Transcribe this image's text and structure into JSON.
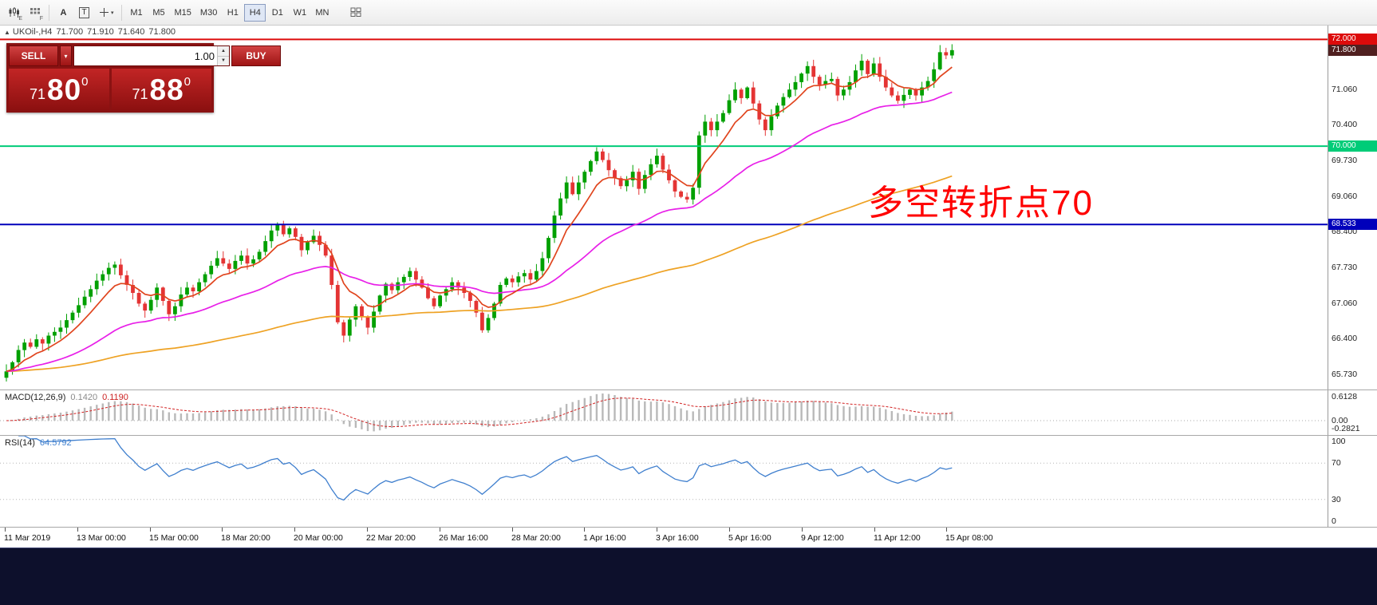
{
  "toolbar": {
    "icon_subs": [
      "E",
      "F"
    ],
    "letter_a": "A",
    "letter_t": "T",
    "timeframes": [
      "M1",
      "M5",
      "M15",
      "M30",
      "H1",
      "H4",
      "D1",
      "W1",
      "MN"
    ],
    "active_timeframe": "H4"
  },
  "quote": {
    "arrow": "▲",
    "symbol": "UKOil-,H4",
    "open": "71.700",
    "high": "71.910",
    "low": "71.640",
    "close": "71.800"
  },
  "trade_panel": {
    "sell_label": "SELL",
    "buy_label": "BUY",
    "volume": "1.00",
    "spin_up": "▲",
    "spin_down": "▼",
    "dropdown": "▾",
    "sell_price": {
      "prefix": "71",
      "big": "80",
      "sup": "0"
    },
    "buy_price": {
      "prefix": "71",
      "big": "88",
      "sup": "0"
    }
  },
  "annotation": {
    "text": "多空转折点70",
    "color": "#ff0000"
  },
  "levels": [
    {
      "price": 72.0,
      "label": "72.000",
      "color": "#dd0b0b",
      "line": true
    },
    {
      "price": 71.8,
      "label": "71.800",
      "color": "#502020",
      "line": false
    },
    {
      "price": 70.0,
      "label": "70.000",
      "color": "#00cc78",
      "line": true
    },
    {
      "price": 68.533,
      "label": "68.533",
      "color": "#0000bb",
      "line": true
    }
  ],
  "price_axis": {
    "ticks": [
      "71.730",
      "71.060",
      "70.400",
      "69.730",
      "69.060",
      "68.400",
      "67.730",
      "67.060",
      "66.400",
      "65.730"
    ]
  },
  "macd": {
    "label": "MACD(12,26,9)",
    "value_main": "0.1420",
    "value_signal": "0.1190",
    "axis": [
      "0.6128",
      "0.00",
      "-0.2821"
    ]
  },
  "rsi": {
    "label": "RSI(14)",
    "value": "64.5792",
    "axis": [
      "100",
      "70",
      "30",
      "0"
    ],
    "levels": [
      70,
      30
    ]
  },
  "time_axis": {
    "labels": [
      "11 Mar 2019",
      "13 Mar 00:00",
      "15 Mar 00:00",
      "18 Mar 20:00",
      "20 Mar 00:00",
      "22 Mar 20:00",
      "26 Mar 16:00",
      "28 Mar 20:00",
      "1 Apr 16:00",
      "3 Apr 16:00",
      "5 Apr 16:00",
      "9 Apr 12:00",
      "11 Apr 12:00",
      "15 Apr 08:00"
    ]
  },
  "chart_data": {
    "type": "candlestick",
    "symbol": "UKOil-",
    "timeframe": "H4",
    "price_range": [
      65.44,
      72.26
    ],
    "colors": {
      "up": "#00a000",
      "down": "#e43434"
    },
    "moving_averages": [
      {
        "name": "fast-ma",
        "color": "#e0451e",
        "alpha": 0.22
      },
      {
        "name": "medium-ma",
        "color": "#e820e8",
        "alpha": 0.055
      },
      {
        "name": "slow-ma",
        "color": "#eea224",
        "alpha": 0.016
      }
    ],
    "last_candle": {
      "o": 71.7,
      "h": 71.91,
      "l": 71.64,
      "c": 71.8
    },
    "closes": [
      65.78,
      65.95,
      66.18,
      66.32,
      66.24,
      66.38,
      66.3,
      66.45,
      66.52,
      66.6,
      66.74,
      66.88,
      67.02,
      67.18,
      67.32,
      67.48,
      67.6,
      67.72,
      67.78,
      67.58,
      67.4,
      67.25,
      67.05,
      66.92,
      67.12,
      67.35,
      67.1,
      66.85,
      67.0,
      67.22,
      67.35,
      67.28,
      67.45,
      67.6,
      67.76,
      67.9,
      67.8,
      67.7,
      67.85,
      67.95,
      67.8,
      67.88,
      68.02,
      68.22,
      68.42,
      68.52,
      68.35,
      68.46,
      68.3,
      68.05,
      68.2,
      68.32,
      68.15,
      67.95,
      67.4,
      66.7,
      66.45,
      66.75,
      67.0,
      66.8,
      66.6,
      66.9,
      67.2,
      67.42,
      67.3,
      67.45,
      67.55,
      67.66,
      67.5,
      67.35,
      67.15,
      67.0,
      67.2,
      67.32,
      67.45,
      67.35,
      67.25,
      67.1,
      66.88,
      66.55,
      66.78,
      67.05,
      67.4,
      67.52,
      67.45,
      67.56,
      67.62,
      67.5,
      67.66,
      67.9,
      68.28,
      68.7,
      69.02,
      69.32,
      69.1,
      69.32,
      69.52,
      69.72,
      69.9,
      69.74,
      69.55,
      69.4,
      69.25,
      69.36,
      69.52,
      69.2,
      69.46,
      69.66,
      69.82,
      69.56,
      69.36,
      69.15,
      69.05,
      69.0,
      69.22,
      70.2,
      70.46,
      70.3,
      70.46,
      70.62,
      70.86,
      71.06,
      70.9,
      71.1,
      70.8,
      70.5,
      70.3,
      70.56,
      70.76,
      70.92,
      71.06,
      71.2,
      71.36,
      71.5,
      71.3,
      71.15,
      71.22,
      71.26,
      70.95,
      71.06,
      71.2,
      71.42,
      71.6,
      71.35,
      71.55,
      71.3,
      71.1,
      70.95,
      70.85,
      70.96,
      71.06,
      70.95,
      71.1,
      71.22,
      71.44,
      71.76,
      71.7,
      71.8
    ]
  }
}
